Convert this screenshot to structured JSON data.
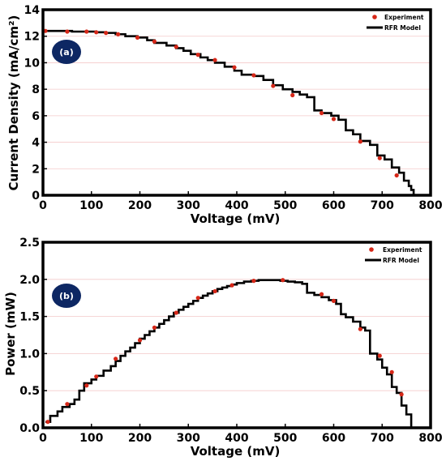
{
  "colors": {
    "experiment": "#d62718",
    "model": "#000000",
    "grid": "#f4c9c9",
    "badge": "#0d2763",
    "badge_text": "#ffffff"
  },
  "chart_data": [
    {
      "type": "line",
      "panel_label": "(a)",
      "xlabel": "Voltage (mV)",
      "ylabel": "Current Density (mA/cm²)",
      "xlim": [
        0,
        800
      ],
      "ylim": [
        0,
        14
      ],
      "xticks": [
        "0",
        "100",
        "200",
        "300",
        "400",
        "500",
        "600",
        "700",
        "800"
      ],
      "yticks": [
        "0",
        "2",
        "4",
        "6",
        "8",
        "10",
        "12",
        "14"
      ],
      "grid": "horizontal",
      "legend_position": "top-right",
      "series": [
        {
          "name": "Experiment",
          "marker": "scatter",
          "x": [
            5,
            50,
            90,
            110,
            130,
            155,
            195,
            230,
            275,
            320,
            355,
            395,
            435,
            475,
            515,
            575,
            600,
            655,
            695,
            730
          ],
          "y": [
            12.4,
            12.35,
            12.35,
            12.3,
            12.25,
            12.15,
            11.9,
            11.6,
            11.2,
            10.6,
            10.2,
            9.65,
            9.05,
            8.25,
            7.55,
            6.2,
            5.75,
            4.05,
            2.8,
            1.5
          ]
        },
        {
          "name": "RFR Model",
          "marker": "step",
          "x": [
            5,
            45,
            60,
            90,
            110,
            130,
            150,
            170,
            195,
            215,
            230,
            255,
            275,
            290,
            305,
            325,
            340,
            355,
            375,
            395,
            410,
            435,
            455,
            475,
            495,
            515,
            530,
            545,
            560,
            575,
            595,
            610,
            625,
            640,
            655,
            675,
            690,
            705,
            720,
            735,
            745,
            755,
            760,
            765
          ],
          "y": [
            12.4,
            12.4,
            12.35,
            12.35,
            12.3,
            12.25,
            12.15,
            12.0,
            11.9,
            11.7,
            11.5,
            11.3,
            11.1,
            10.9,
            10.65,
            10.4,
            10.2,
            10.0,
            9.7,
            9.4,
            9.1,
            9.0,
            8.7,
            8.3,
            8.0,
            7.8,
            7.6,
            7.4,
            6.4,
            6.2,
            6.0,
            5.7,
            4.9,
            4.6,
            4.1,
            3.8,
            3.0,
            2.7,
            2.1,
            1.7,
            1.1,
            0.7,
            0.4,
            0.0
          ]
        }
      ]
    },
    {
      "type": "line",
      "panel_label": "(b)",
      "xlabel": "Voltage (mV)",
      "ylabel": "Power (mW)",
      "xlim": [
        0,
        800
      ],
      "ylim": [
        0,
        2.5
      ],
      "xticks": [
        "0",
        "100",
        "200",
        "300",
        "400",
        "500",
        "600",
        "700",
        "800"
      ],
      "yticks": [
        "0.0",
        "0.5",
        "1.0",
        "1.5",
        "2.0",
        "2.5"
      ],
      "grid": "horizontal",
      "legend_position": "top-right",
      "series": [
        {
          "name": "Experiment",
          "marker": "scatter",
          "x": [
            10,
            50,
            90,
            110,
            150,
            200,
            230,
            275,
            320,
            355,
            390,
            435,
            495,
            575,
            600,
            655,
            695,
            720,
            740
          ],
          "y": [
            0.08,
            0.32,
            0.57,
            0.69,
            0.93,
            1.18,
            1.35,
            1.55,
            1.75,
            1.84,
            1.92,
            1.98,
            1.99,
            1.8,
            1.71,
            1.33,
            0.97,
            0.75,
            0.45
          ]
        },
        {
          "name": "RFR Model",
          "marker": "step",
          "x": [
            5,
            15,
            30,
            40,
            55,
            65,
            75,
            85,
            100,
            110,
            125,
            140,
            150,
            160,
            170,
            180,
            190,
            200,
            210,
            220,
            230,
            240,
            250,
            260,
            270,
            280,
            290,
            300,
            310,
            320,
            330,
            340,
            350,
            360,
            370,
            380,
            390,
            400,
            415,
            430,
            445,
            460,
            475,
            490,
            505,
            520,
            535,
            545,
            560,
            575,
            590,
            605,
            615,
            625,
            640,
            655,
            665,
            675,
            690,
            700,
            710,
            720,
            730,
            740,
            750,
            760,
            765
          ],
          "y": [
            0.08,
            0.16,
            0.22,
            0.28,
            0.32,
            0.38,
            0.5,
            0.6,
            0.65,
            0.7,
            0.77,
            0.83,
            0.9,
            0.97,
            1.03,
            1.08,
            1.14,
            1.2,
            1.25,
            1.3,
            1.35,
            1.4,
            1.45,
            1.5,
            1.55,
            1.59,
            1.63,
            1.67,
            1.71,
            1.75,
            1.78,
            1.81,
            1.84,
            1.87,
            1.89,
            1.91,
            1.93,
            1.95,
            1.97,
            1.98,
            1.99,
            1.99,
            1.99,
            1.98,
            1.97,
            1.96,
            1.94,
            1.82,
            1.79,
            1.76,
            1.72,
            1.67,
            1.53,
            1.49,
            1.43,
            1.35,
            1.31,
            1.0,
            0.92,
            0.81,
            0.72,
            0.55,
            0.47,
            0.3,
            0.18,
            0.0,
            0.0
          ]
        }
      ]
    }
  ]
}
